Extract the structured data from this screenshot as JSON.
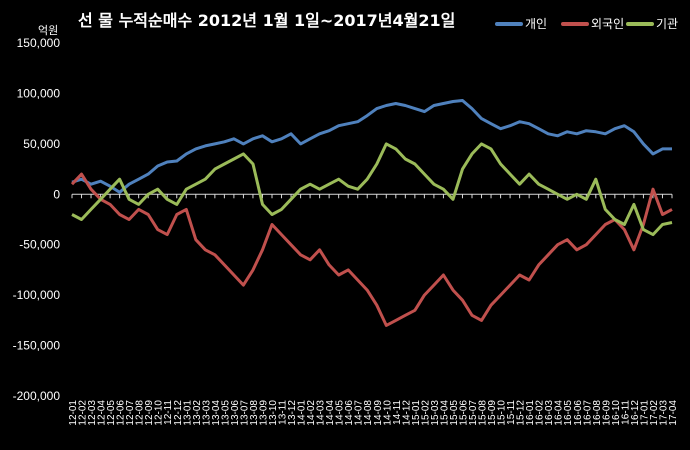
{
  "chart_data": {
    "type": "line",
    "title": "선 물 누적순매수 2012년 1월 1일~2017년4월21일",
    "ylabel": "억원",
    "ylim": [
      -200000,
      150000
    ],
    "yticks": [
      150000,
      100000,
      50000,
      0,
      -50000,
      -100000,
      -150000,
      -200000
    ],
    "ytick_labels": [
      "150,000",
      "100,000",
      "50,000",
      "0",
      "-50,000",
      "-100,000",
      "-150,000",
      "-200,000"
    ],
    "grid": false,
    "legend_position": "top-right",
    "x": [
      "12-01",
      "12-02",
      "12-03",
      "12-04",
      "12-05",
      "12-06",
      "12-07",
      "12-08",
      "12-09",
      "12-10",
      "12-11",
      "12-12",
      "13-01",
      "13-02",
      "13-03",
      "13-04",
      "13-05",
      "13-06",
      "13-07",
      "13-08",
      "13-09",
      "13-10",
      "13-11",
      "13-12",
      "14-01",
      "14-02",
      "14-03",
      "14-04",
      "14-05",
      "14-06",
      "14-07",
      "14-08",
      "14-09",
      "14-10",
      "14-11",
      "14-12",
      "15-01",
      "15-02",
      "15-03",
      "15-04",
      "15-05",
      "15-06",
      "15-07",
      "15-08",
      "15-09",
      "15-10",
      "15-11",
      "15-12",
      "16-01",
      "16-02",
      "16-03",
      "16-04",
      "16-05",
      "16-06",
      "16-07",
      "16-08",
      "16-09",
      "16-10",
      "16-11",
      "16-12",
      "17-01",
      "17-02",
      "17-03",
      "17-04"
    ],
    "series": [
      {
        "name": "개인",
        "color": "#4f81bd",
        "values": [
          12000,
          15000,
          10000,
          13000,
          8000,
          2000,
          10000,
          15000,
          20000,
          28000,
          32000,
          33000,
          40000,
          45000,
          48000,
          50000,
          52000,
          55000,
          50000,
          55000,
          58000,
          52000,
          55000,
          60000,
          50000,
          55000,
          60000,
          63000,
          68000,
          70000,
          72000,
          78000,
          85000,
          88000,
          90000,
          88000,
          85000,
          82000,
          88000,
          90000,
          92000,
          93000,
          85000,
          75000,
          70000,
          65000,
          68000,
          72000,
          70000,
          65000,
          60000,
          58000,
          62000,
          60000,
          63000,
          62000,
          60000,
          65000,
          68000,
          62000,
          50000,
          40000,
          45000,
          45000
        ]
      },
      {
        "name": "외국인",
        "color": "#c0504d",
        "values": [
          10000,
          20000,
          5000,
          -5000,
          -10000,
          -20000,
          -25000,
          -15000,
          -20000,
          -35000,
          -40000,
          -20000,
          -15000,
          -45000,
          -55000,
          -60000,
          -70000,
          -80000,
          -90000,
          -75000,
          -55000,
          -30000,
          -40000,
          -50000,
          -60000,
          -65000,
          -55000,
          -70000,
          -80000,
          -75000,
          -85000,
          -95000,
          -110000,
          -130000,
          -125000,
          -120000,
          -115000,
          -100000,
          -90000,
          -80000,
          -95000,
          -105000,
          -120000,
          -125000,
          -110000,
          -100000,
          -90000,
          -80000,
          -85000,
          -70000,
          -60000,
          -50000,
          -45000,
          -55000,
          -50000,
          -40000,
          -30000,
          -25000,
          -35000,
          -55000,
          -30000,
          5000,
          -20000,
          -15000
        ]
      },
      {
        "name": "기관",
        "color": "#9bbb59",
        "values": [
          -20000,
          -25000,
          -15000,
          -5000,
          5000,
          15000,
          -5000,
          -10000,
          0,
          5000,
          -5000,
          -10000,
          5000,
          10000,
          15000,
          25000,
          30000,
          35000,
          40000,
          30000,
          -10000,
          -20000,
          -15000,
          -5000,
          5000,
          10000,
          5000,
          10000,
          15000,
          8000,
          5000,
          15000,
          30000,
          50000,
          45000,
          35000,
          30000,
          20000,
          10000,
          5000,
          -5000,
          25000,
          40000,
          50000,
          45000,
          30000,
          20000,
          10000,
          20000,
          10000,
          5000,
          0,
          -5000,
          0,
          -5000,
          15000,
          -15000,
          -25000,
          -30000,
          -10000,
          -35000,
          -40000,
          -30000,
          -28000
        ]
      }
    ]
  }
}
